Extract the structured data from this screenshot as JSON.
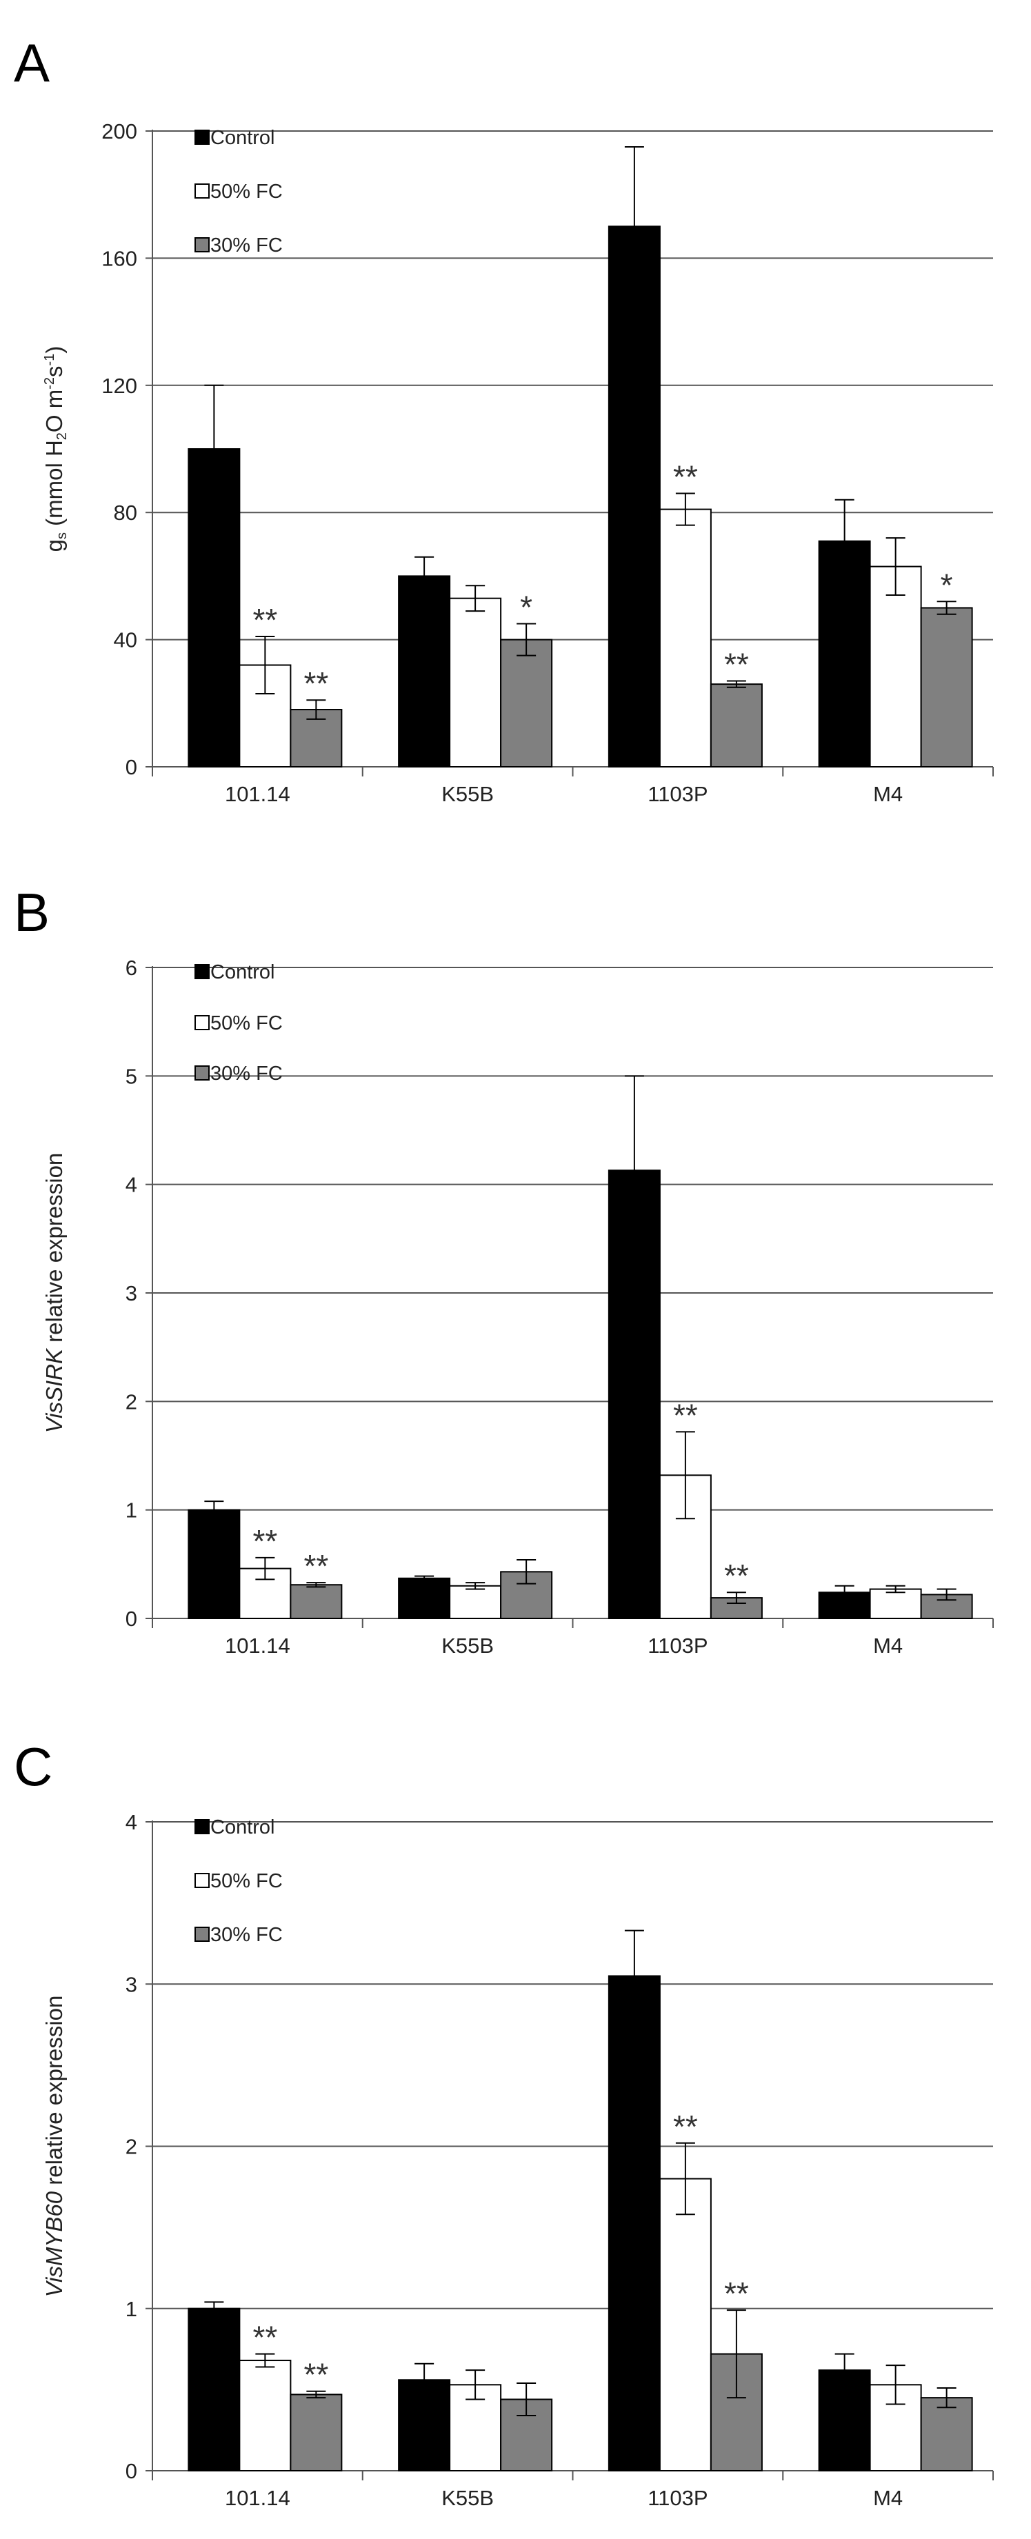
{
  "chart_data": [
    {
      "type": "bar",
      "panel": "A",
      "ylabel": "gs (mmol H2O m-2s-1)",
      "ylabel_parts": {
        "g": "g",
        "g_sub": "s",
        "pre": " (mmol H",
        "h2o_sub": "2",
        "mid": "O m",
        "m_sup": "-2",
        "s": "s",
        "s_sup": "-1",
        "close": ")"
      },
      "ylim": [
        0,
        200
      ],
      "yticks": [
        "0",
        "40",
        "80",
        "120",
        "160",
        "200"
      ],
      "categories": [
        "101.14",
        "K55B",
        "1103P",
        "M4"
      ],
      "legend": [
        "Control",
        "50% FC",
        "30% FC"
      ],
      "series": [
        {
          "name": "Control",
          "values": [
            100,
            60,
            170,
            71
          ],
          "errors": [
            20,
            6,
            25,
            13
          ]
        },
        {
          "name": "50% FC",
          "values": [
            32,
            53,
            81,
            63
          ],
          "errors": [
            9,
            4,
            5,
            9
          ]
        },
        {
          "name": "30% FC",
          "values": [
            18,
            40,
            26,
            50
          ],
          "errors": [
            3,
            5,
            1,
            2
          ]
        }
      ],
      "annotations": [
        {
          "category": 0,
          "series": 1,
          "text": "**"
        },
        {
          "category": 0,
          "series": 2,
          "text": "**"
        },
        {
          "category": 1,
          "series": 2,
          "text": "*"
        },
        {
          "category": 2,
          "series": 1,
          "text": "**"
        },
        {
          "category": 2,
          "series": 2,
          "text": "**"
        },
        {
          "category": 3,
          "series": 2,
          "text": "*"
        }
      ],
      "grid": true,
      "legend_position": "top-left"
    },
    {
      "type": "bar",
      "panel": "B",
      "ylabel": "VisSIRK relative expression",
      "ylabel_parts": {
        "gene": "VisSIRK",
        "rest": " relative expression"
      },
      "ylim": [
        0,
        6
      ],
      "yticks": [
        "0",
        "1",
        "2",
        "3",
        "4",
        "5",
        "6"
      ],
      "categories": [
        "101.14",
        "K55B",
        "1103P",
        "M4"
      ],
      "legend": [
        "Control",
        "50% FC",
        "30% FC"
      ],
      "series": [
        {
          "name": "Control",
          "values": [
            1.0,
            0.37,
            4.13,
            0.24
          ],
          "errors": [
            0.08,
            0.02,
            0.87,
            0.06
          ]
        },
        {
          "name": "50% FC",
          "values": [
            0.46,
            0.3,
            1.32,
            0.27
          ],
          "errors": [
            0.1,
            0.03,
            0.4,
            0.03
          ]
        },
        {
          "name": "30% FC",
          "values": [
            0.31,
            0.43,
            0.19,
            0.22
          ],
          "errors": [
            0.02,
            0.11,
            0.05,
            0.05
          ]
        }
      ],
      "annotations": [
        {
          "category": 0,
          "series": 1,
          "text": "**"
        },
        {
          "category": 0,
          "series": 2,
          "text": "**"
        },
        {
          "category": 2,
          "series": 1,
          "text": "**"
        },
        {
          "category": 2,
          "series": 2,
          "text": "**"
        }
      ],
      "grid": true,
      "legend_position": "top-left"
    },
    {
      "type": "bar",
      "panel": "C",
      "ylabel": "VisMYB60 relative expression",
      "ylabel_parts": {
        "gene": "VisMYB60",
        "rest": " relative expression"
      },
      "ylim": [
        0,
        4
      ],
      "yticks": [
        "0",
        "1",
        "2",
        "3",
        "4"
      ],
      "categories": [
        "101.14",
        "K55B",
        "1103P",
        "M4"
      ],
      "legend": [
        "Control",
        "50% FC",
        "30% FC"
      ],
      "series": [
        {
          "name": "Control",
          "values": [
            1.0,
            0.56,
            3.05,
            0.62
          ],
          "errors": [
            0.04,
            0.1,
            0.28,
            0.1
          ]
        },
        {
          "name": "50% FC",
          "values": [
            0.68,
            0.53,
            1.8,
            0.53
          ],
          "errors": [
            0.04,
            0.09,
            0.22,
            0.12
          ]
        },
        {
          "name": "30% FC",
          "values": [
            0.47,
            0.44,
            0.72,
            0.45
          ],
          "errors": [
            0.02,
            0.1,
            0.27,
            0.06
          ]
        }
      ],
      "annotations": [
        {
          "category": 0,
          "series": 1,
          "text": "**"
        },
        {
          "category": 0,
          "series": 2,
          "text": "**"
        },
        {
          "category": 2,
          "series": 1,
          "text": "**"
        },
        {
          "category": 2,
          "series": 2,
          "text": "**"
        }
      ],
      "grid": true,
      "legend_position": "top-left"
    }
  ],
  "colors": {
    "Control": "#000000",
    "50% FC": "#ffffff",
    "30% FC": "#808080",
    "grid": "#555555"
  }
}
